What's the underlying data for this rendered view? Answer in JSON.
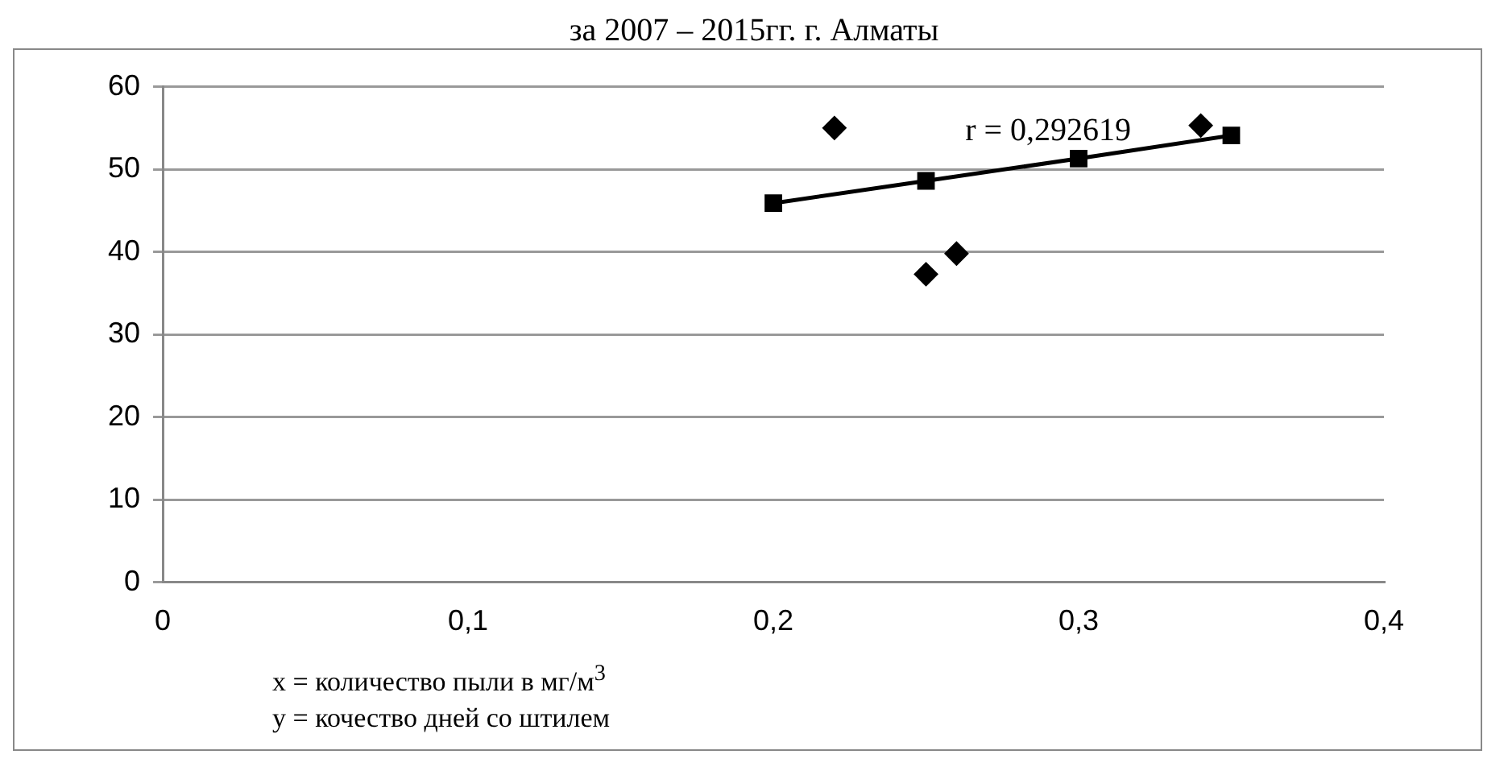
{
  "chart_data": {
    "type": "scatter",
    "title": "за 2007 – 2015гг. г. Алматы",
    "series": [
      {
        "type": "scatter",
        "color": "#000000",
        "marker": "diamond",
        "x": [
          0.22,
          0.25,
          0.26,
          0.34
        ],
        "values": [
          55,
          37.3,
          39.8,
          55.3
        ]
      },
      {
        "type": "line",
        "color": "#000000",
        "marker": "square",
        "x": [
          0.2,
          0.25,
          0.3,
          0.35
        ],
        "values": [
          45.9,
          48.6,
          51.3,
          54.1
        ]
      }
    ],
    "xlim": [
      0,
      0.4
    ],
    "xticks": [
      0,
      {
        "value": 0.1,
        "label": "0,1"
      },
      {
        "value": 0.2,
        "label": "0,2"
      },
      {
        "value": 0.3,
        "label": "0,3"
      },
      {
        "value": 0.4,
        "label": "0,4"
      }
    ],
    "ylim": [
      0,
      60
    ],
    "yticks": [
      0,
      10,
      20,
      30,
      40,
      50,
      60
    ],
    "grid": "y",
    "legend": false,
    "annotations": [
      "r = 0,292619",
      "x = количество пыли в мг/м$^{3}$",
      "y = кочество дней со штилем"
    ]
  }
}
